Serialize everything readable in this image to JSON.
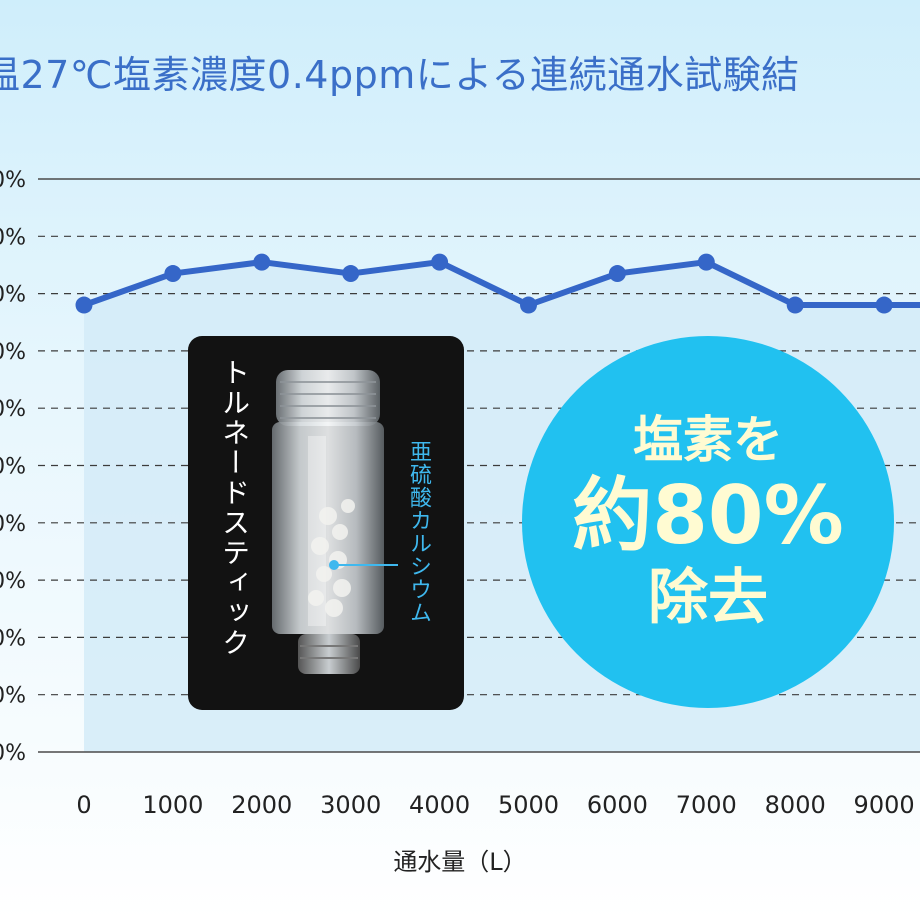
{
  "chart_data": {
    "type": "line",
    "title": "温27℃塩素濃度0.4ppmによる連続通水試験結",
    "xlabel": "通水量（L）",
    "ylabel": "",
    "categories": [
      "0",
      "1000",
      "2000",
      "3000",
      "4000",
      "5000",
      "6000",
      "7000",
      "8000",
      "9000"
    ],
    "y_tick_labels": [
      "0%",
      "0%",
      "0%",
      "0%",
      "0%",
      "0%",
      "0%",
      "0%",
      "0%",
      "0%",
      "0%"
    ],
    "ylim": [
      0,
      100
    ],
    "series": [
      {
        "values": [
          78,
          83.5,
          85.5,
          83.5,
          85.5,
          78,
          83.5,
          85.5,
          78,
          78
        ]
      }
    ],
    "grid": true,
    "line_color": "#3566c8",
    "plot_fill_color": "#d3ebf8"
  },
  "product": {
    "name": "トルネードスティック",
    "ingredient": "亜硫酸カルシウム"
  },
  "badge": {
    "line1": "塩素を",
    "line2": "約80%",
    "line3": "除去",
    "color": "#21c1f0",
    "text_color": "#fffbd2"
  }
}
